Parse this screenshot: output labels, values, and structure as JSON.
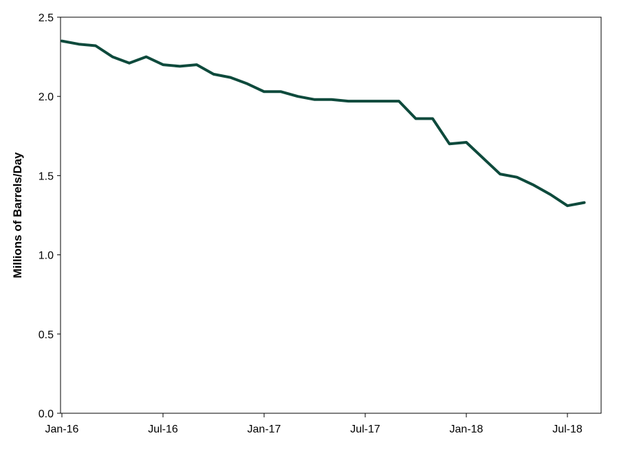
{
  "chart_data": {
    "type": "line",
    "xlabel": "",
    "ylabel": "Millions of Barrels/Day",
    "ylim": [
      0,
      2.5
    ],
    "yticks": [
      "0.0",
      "0.5",
      "1.0",
      "1.5",
      "2.0",
      "2.5"
    ],
    "xtick_labels": [
      "Jan-16",
      "Jul-16",
      "Jan-17",
      "Jul-17",
      "Jan-18",
      "Jul-18"
    ],
    "grid": false,
    "legend": "none",
    "line_color": "#0e4a3c",
    "series": [
      {
        "x": [
          "2016-01",
          "2016-02",
          "2016-03",
          "2016-04",
          "2016-05",
          "2016-06",
          "2016-07",
          "2016-08",
          "2016-09",
          "2016-10",
          "2016-11",
          "2016-12",
          "2017-01",
          "2017-02",
          "2017-03",
          "2017-04",
          "2017-05",
          "2017-06",
          "2017-07",
          "2017-08",
          "2017-09",
          "2017-10",
          "2017-11",
          "2017-12",
          "2018-01",
          "2018-02",
          "2018-03",
          "2018-04",
          "2018-05",
          "2018-06",
          "2018-07",
          "2018-08"
        ],
        "values": [
          2.35,
          2.33,
          2.32,
          2.25,
          2.21,
          2.25,
          2.2,
          2.19,
          2.2,
          2.14,
          2.12,
          2.08,
          2.03,
          2.03,
          2.0,
          1.98,
          1.98,
          1.97,
          1.97,
          1.97,
          1.97,
          1.86,
          1.86,
          1.7,
          1.71,
          1.61,
          1.51,
          1.49,
          1.44,
          1.38,
          1.31,
          1.33
        ]
      }
    ]
  }
}
